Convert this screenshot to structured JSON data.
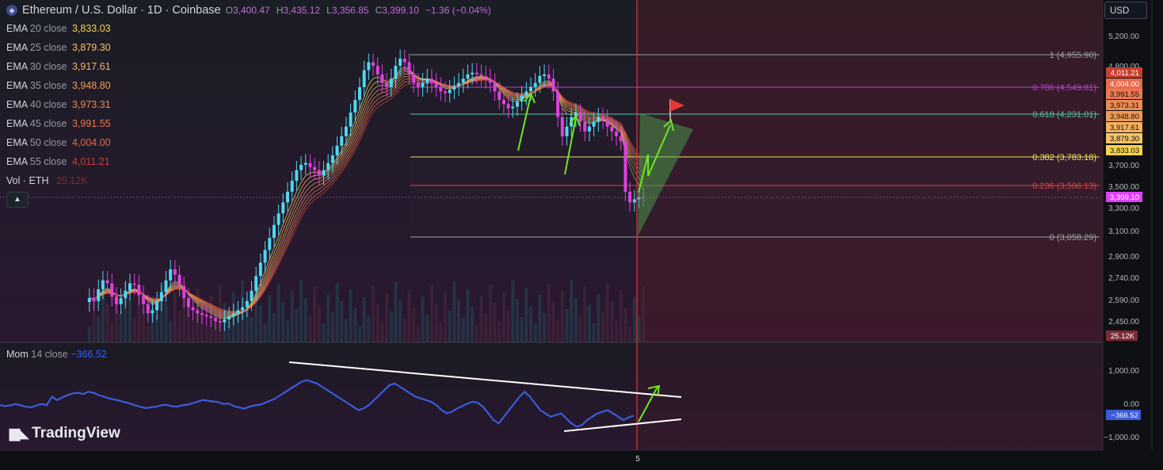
{
  "header": {
    "symbol_title": "Ethereum / U.S. Dollar · 1D · Coinbase",
    "ohlc": [
      {
        "k": "O",
        "v": "3,400.47"
      },
      {
        "k": "H",
        "v": "3,435.12"
      },
      {
        "k": "L",
        "v": "3,356.85"
      },
      {
        "k": "C",
        "v": "3,399.10"
      }
    ],
    "change": "−1.36 (−0.04%)"
  },
  "ema_legend": [
    {
      "name": "EMA",
      "period": "20 close",
      "value": "3,833.03",
      "color": "#f7d34f"
    },
    {
      "name": "EMA",
      "period": "25 close",
      "value": "3,879.30",
      "color": "#f4c269"
    },
    {
      "name": "EMA",
      "period": "30 close",
      "value": "3,917.61",
      "color": "#f2b25e"
    },
    {
      "name": "EMA",
      "period": "35 close",
      "value": "3,948.80",
      "color": "#ef9a57"
    },
    {
      "name": "EMA",
      "period": "40 close",
      "value": "3,973.31",
      "color": "#ec8a55"
    },
    {
      "name": "EMA",
      "period": "45 close",
      "value": "3,991.55",
      "color": "#ea7a52"
    },
    {
      "name": "EMA",
      "period": "50 close",
      "value": "4,004.00",
      "color": "#e86a4d"
    },
    {
      "name": "EMA",
      "period": "55 close",
      "value": "4,011.21",
      "color": "#c8402f"
    }
  ],
  "volume_legend": {
    "label": "Vol · ETH",
    "value": "25.12K"
  },
  "collapse_icon": "chevron-up-icon",
  "momentum_legend": {
    "name": "Mom",
    "params": "14 close",
    "value": "−366.52"
  },
  "currency_button": "USD",
  "brand": "TradingView",
  "colors": {
    "up": "#4fd8f0",
    "down": "#e040e0",
    "fib_1": "#9aa3a0",
    "fib_786": "#b044c8",
    "fib_618": "#58c0a0",
    "fib_382": "#e8e060",
    "fib_236": "#e04040",
    "fib_0": "#9aa3a0",
    "momentum": "#3b5bdb",
    "arrow": "#6ee622",
    "cursor_line": "#e33838",
    "last_price": "#e040fb"
  },
  "chart_data": [
    {
      "type": "candlestick",
      "title": "Ethereum / U.S. Dollar · 1D · Coinbase",
      "y_unit": "USD",
      "y_ticks": [
        5200,
        4800,
        3700,
        3500,
        3300,
        3100,
        2900,
        2740,
        2590,
        2450
      ],
      "y_tick_labels": [
        "5,200.00",
        "4,800.00",
        "3,700.00",
        "3,500.00",
        "3,300.00",
        "3,100.00",
        "2,900.00",
        "2,740.00",
        "2,590.00",
        "2,450.00"
      ],
      "x_tick_labels": [
        "5"
      ],
      "last_price": {
        "value": 3399.1,
        "label": "3,399.10"
      },
      "volume_tag": "25.12K",
      "ema_right_tags": [
        {
          "label": "4,011.21",
          "color": "#c8402f"
        },
        {
          "label": "4,004.00",
          "color": "#e86a4d"
        },
        {
          "label": "3,991.55",
          "color": "#ea7a52"
        },
        {
          "label": "3,973.31",
          "color": "#ec8a55"
        },
        {
          "label": "3,948.80",
          "color": "#ef9a57"
        },
        {
          "label": "3,917.61",
          "color": "#f2b25e"
        },
        {
          "label": "3,879.30",
          "color": "#f4c269"
        },
        {
          "label": "3,833.03",
          "color": "#f7d34f"
        }
      ],
      "fib_levels": [
        {
          "ratio": "1",
          "price": 4955.9,
          "label": "1 (4,955.90)"
        },
        {
          "ratio": "0.786",
          "price": 4549.81,
          "label": "0.786 (4,549.81)"
        },
        {
          "ratio": "0.618",
          "price": 4231.01,
          "label": "0.618 (4,231.01)"
        },
        {
          "ratio": "0.382",
          "price": 3783.18,
          "label": "0.382 (3,783.18)"
        },
        {
          "ratio": "0.236",
          "price": 3506.13,
          "label": "0.236 (3,506.13)"
        },
        {
          "ratio": "0",
          "price": 3058.29,
          "label": "0 (3,058.29)"
        }
      ],
      "closes": [
        2600,
        2580,
        2660,
        2720,
        2700,
        2610,
        2560,
        2600,
        2650,
        2700,
        2690,
        2620,
        2560,
        2500,
        2520,
        2580,
        2640,
        2720,
        2800,
        2760,
        2680,
        2600,
        2540,
        2520,
        2500,
        2490,
        2480,
        2470,
        2450,
        2440,
        2460,
        2480,
        2500,
        2520,
        2540,
        2580,
        2650,
        2750,
        2850,
        2950,
        3050,
        3150,
        3250,
        3350,
        3450,
        3550,
        3650,
        3700,
        3720,
        3680,
        3650,
        3600,
        3650,
        3720,
        3800,
        3900,
        4000,
        4100,
        4250,
        4400,
        4550,
        4750,
        4850,
        4800,
        4700,
        4600,
        4550,
        4650,
        4800,
        4900,
        4850,
        4700,
        4600,
        4550,
        4600,
        4650,
        4600,
        4550,
        4500,
        4480,
        4520,
        4560,
        4600,
        4650,
        4700,
        4720,
        4700,
        4680,
        4650,
        4600,
        4500,
        4400,
        4350,
        4300,
        4320,
        4380,
        4450,
        4500,
        4550,
        4600,
        4680,
        4700,
        4650,
        4500,
        4200,
        4000,
        4100,
        4200,
        4250,
        4150,
        4050,
        4100,
        4150,
        4200,
        4180,
        4100,
        4050,
        4000,
        3950,
        3450,
        3350,
        3380,
        3400,
        3399.1
      ]
    },
    {
      "type": "line",
      "title": "Mom 14 close",
      "y_ticks": [
        1000,
        0,
        -1000
      ],
      "y_tick_labels": [
        "1,000.00",
        "0.00",
        "−1,000.00"
      ],
      "last_value": {
        "value": -366.52,
        "label": "−366.52"
      },
      "values": [
        -50,
        -80,
        -60,
        -20,
        -60,
        -100,
        -120,
        -60,
        -20,
        -50,
        200,
        100,
        180,
        250,
        300,
        320,
        280,
        350,
        320,
        250,
        200,
        150,
        120,
        80,
        40,
        0,
        -60,
        -100,
        -140,
        -120,
        -100,
        -60,
        -40,
        -80,
        -100,
        -60,
        -40,
        0,
        50,
        100,
        80,
        60,
        40,
        -20,
        0,
        -80,
        -120,
        -160,
        -100,
        -60,
        -40,
        20,
        80,
        150,
        250,
        350,
        450,
        550,
        650,
        700,
        650,
        600,
        500,
        400,
        300,
        200,
        100,
        0,
        -100,
        -200,
        -150,
        -50,
        100,
        250,
        400,
        550,
        600,
        500,
        400,
        300,
        200,
        150,
        100,
        50,
        -50,
        -200,
        -300,
        -250,
        -150,
        -80,
        0,
        50,
        20,
        -100,
        -300,
        -500,
        -600,
        -400,
        -200,
        0,
        200,
        350,
        200,
        0,
        -200,
        -300,
        -400,
        -350,
        -300,
        -450,
        -600,
        -700,
        -650,
        -500,
        -400,
        -300,
        -250,
        -200,
        -300,
        -400,
        -500,
        -420,
        -366.52
      ]
    }
  ],
  "drawings": {
    "trendline_upper_label": "descending trendline",
    "trendline_lower_label": "ascending trendline"
  }
}
